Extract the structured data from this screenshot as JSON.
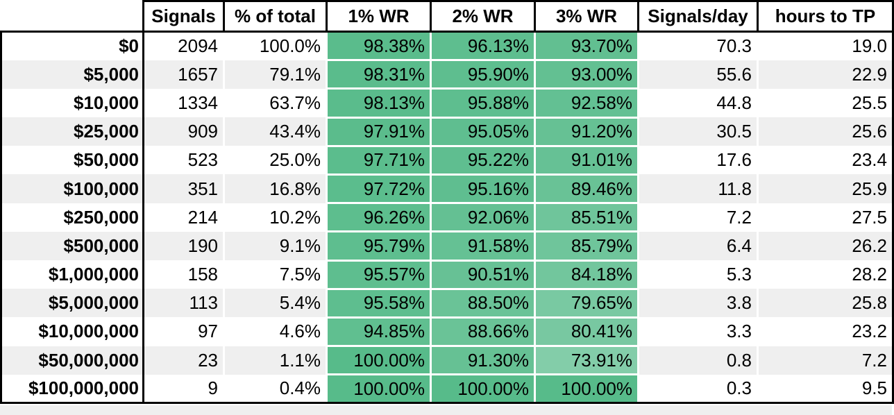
{
  "table": {
    "columns": [
      {
        "key": "label",
        "label": ""
      },
      {
        "key": "signals",
        "label": "Signals"
      },
      {
        "key": "pct_of_total",
        "label": "% of total"
      },
      {
        "key": "wr1",
        "label": "1% WR"
      },
      {
        "key": "wr2",
        "label": "2% WR"
      },
      {
        "key": "wr3",
        "label": "3% WR"
      },
      {
        "key": "signals_per_day",
        "label": "Signals/day"
      },
      {
        "key": "hours_to_tp",
        "label": "hours to TP"
      }
    ],
    "wr_columns": [
      "wr1",
      "wr2",
      "wr3"
    ],
    "rows": [
      {
        "label": "$0",
        "signals": "2094",
        "pct_of_total": "100.0%",
        "wr1": "98.38%",
        "wr2": "96.13%",
        "wr3": "93.70%",
        "signals_per_day": "70.3",
        "hours_to_tp": "19.0"
      },
      {
        "label": "$5,000",
        "signals": "1657",
        "pct_of_total": "79.1%",
        "wr1": "98.31%",
        "wr2": "95.90%",
        "wr3": "93.00%",
        "signals_per_day": "55.6",
        "hours_to_tp": "22.9"
      },
      {
        "label": "$10,000",
        "signals": "1334",
        "pct_of_total": "63.7%",
        "wr1": "98.13%",
        "wr2": "95.88%",
        "wr3": "92.58%",
        "signals_per_day": "44.8",
        "hours_to_tp": "25.5"
      },
      {
        "label": "$25,000",
        "signals": "909",
        "pct_of_total": "43.4%",
        "wr1": "97.91%",
        "wr2": "95.05%",
        "wr3": "91.20%",
        "signals_per_day": "30.5",
        "hours_to_tp": "25.6"
      },
      {
        "label": "$50,000",
        "signals": "523",
        "pct_of_total": "25.0%",
        "wr1": "97.71%",
        "wr2": "95.22%",
        "wr3": "91.01%",
        "signals_per_day": "17.6",
        "hours_to_tp": "23.4"
      },
      {
        "label": "$100,000",
        "signals": "351",
        "pct_of_total": "16.8%",
        "wr1": "97.72%",
        "wr2": "95.16%",
        "wr3": "89.46%",
        "signals_per_day": "11.8",
        "hours_to_tp": "25.9"
      },
      {
        "label": "$250,000",
        "signals": "214",
        "pct_of_total": "10.2%",
        "wr1": "96.26%",
        "wr2": "92.06%",
        "wr3": "85.51%",
        "signals_per_day": "7.2",
        "hours_to_tp": "27.5"
      },
      {
        "label": "$500,000",
        "signals": "190",
        "pct_of_total": "9.1%",
        "wr1": "95.79%",
        "wr2": "91.58%",
        "wr3": "85.79%",
        "signals_per_day": "6.4",
        "hours_to_tp": "26.2"
      },
      {
        "label": "$1,000,000",
        "signals": "158",
        "pct_of_total": "7.5%",
        "wr1": "95.57%",
        "wr2": "90.51%",
        "wr3": "84.18%",
        "signals_per_day": "5.3",
        "hours_to_tp": "28.2"
      },
      {
        "label": "$5,000,000",
        "signals": "113",
        "pct_of_total": "5.4%",
        "wr1": "95.58%",
        "wr2": "88.50%",
        "wr3": "79.65%",
        "signals_per_day": "3.8",
        "hours_to_tp": "25.8"
      },
      {
        "label": "$10,000,000",
        "signals": "97",
        "pct_of_total": "4.6%",
        "wr1": "94.85%",
        "wr2": "88.66%",
        "wr3": "80.41%",
        "signals_per_day": "3.3",
        "hours_to_tp": "23.2"
      },
      {
        "label": "$50,000,000",
        "signals": "23",
        "pct_of_total": "1.1%",
        "wr1": "100.00%",
        "wr2": "91.30%",
        "wr3": "73.91%",
        "signals_per_day": "0.8",
        "hours_to_tp": "7.2"
      },
      {
        "label": "$100,000,000",
        "signals": "9",
        "pct_of_total": "0.4%",
        "wr1": "100.00%",
        "wr2": "100.00%",
        "wr3": "100.00%",
        "signals_per_day": "0.3",
        "hours_to_tp": "9.5"
      }
    ]
  },
  "colors": {
    "wr_scale_max": "#57bb8a",
    "wr_scale_min": "#ffffff",
    "wr_scale_domain": [
      0,
      100
    ],
    "row_band": "#efefef",
    "row_white": "#ffffff",
    "border": "#000000",
    "gridline": "#ffffff"
  }
}
